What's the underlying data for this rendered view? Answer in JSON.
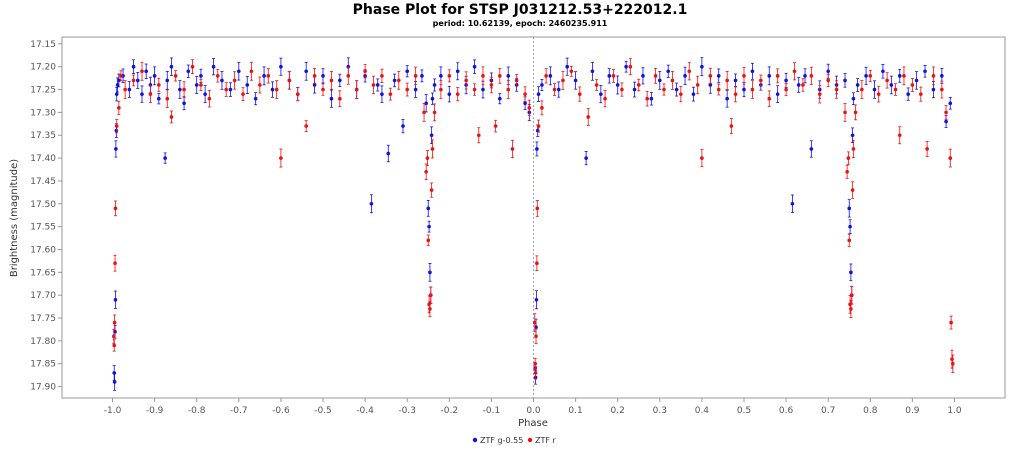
{
  "chart_data": {
    "type": "scatter",
    "title": "Phase Plot for STSP J031212.53+222012.1",
    "subtitle": "period: 10.62139, epoch: 2460235.911",
    "xlabel": "Phase",
    "ylabel": "Brightness (magnitude)",
    "xlim": [
      -1.12,
      1.12
    ],
    "ylim": [
      17.135,
      17.925
    ],
    "y_inverted": true,
    "grid": false,
    "legend_position": "bottom-center",
    "x_ticks": [
      "-1.0",
      "-0.9",
      "-0.8",
      "-0.7",
      "-0.6",
      "-0.5",
      "-0.4",
      "-0.3",
      "-0.2",
      "-0.1",
      "0.0",
      "0.1",
      "0.2",
      "0.3",
      "0.4",
      "0.5",
      "0.6",
      "0.7",
      "0.8",
      "0.9",
      "1.0"
    ],
    "y_ticks": [
      "17.15",
      "17.20",
      "17.25",
      "17.30",
      "17.35",
      "17.40",
      "17.45",
      "17.50",
      "17.55",
      "17.60",
      "17.65",
      "17.70",
      "17.75",
      "17.80",
      "17.85",
      "17.90"
    ],
    "reference_line_x": 0.0,
    "series": [
      {
        "name": "ZTF g-0.55",
        "color": "#1010e0",
        "points": [
          [
            -0.996,
            17.87
          ],
          [
            -0.995,
            17.89
          ],
          [
            -0.994,
            17.78
          ],
          [
            -0.993,
            17.71
          ],
          [
            -0.992,
            17.38
          ],
          [
            -0.991,
            17.34
          ],
          [
            -0.99,
            17.26
          ],
          [
            -0.988,
            17.24
          ],
          [
            -0.985,
            17.23
          ],
          [
            -0.975,
            17.22
          ],
          [
            -0.96,
            17.25
          ],
          [
            -0.95,
            17.2
          ],
          [
            -0.94,
            17.23
          ],
          [
            -0.93,
            17.26
          ],
          [
            -0.92,
            17.21
          ],
          [
            -0.91,
            17.24
          ],
          [
            -0.9,
            17.22
          ],
          [
            -0.89,
            17.27
          ],
          [
            -0.875,
            17.4
          ],
          [
            -0.87,
            17.23
          ],
          [
            -0.86,
            17.2
          ],
          [
            -0.84,
            17.25
          ],
          [
            -0.83,
            17.28
          ],
          [
            -0.82,
            17.21
          ],
          [
            -0.8,
            17.24
          ],
          [
            -0.79,
            17.22
          ],
          [
            -0.78,
            17.26
          ],
          [
            -0.76,
            17.2
          ],
          [
            -0.74,
            17.23
          ],
          [
            -0.72,
            17.25
          ],
          [
            -0.7,
            17.21
          ],
          [
            -0.68,
            17.24
          ],
          [
            -0.66,
            17.27
          ],
          [
            -0.64,
            17.22
          ],
          [
            -0.62,
            17.25
          ],
          [
            -0.6,
            17.2
          ],
          [
            -0.58,
            17.23
          ],
          [
            -0.56,
            17.26
          ],
          [
            -0.54,
            17.21
          ],
          [
            -0.52,
            17.24
          ],
          [
            -0.5,
            17.22
          ],
          [
            -0.48,
            17.27
          ],
          [
            -0.46,
            17.23
          ],
          [
            -0.44,
            17.2
          ],
          [
            -0.42,
            17.25
          ],
          [
            -0.4,
            17.22
          ],
          [
            -0.385,
            17.5
          ],
          [
            -0.37,
            17.24
          ],
          [
            -0.36,
            17.26
          ],
          [
            -0.345,
            17.39
          ],
          [
            -0.33,
            17.23
          ],
          [
            -0.31,
            17.33
          ],
          [
            -0.3,
            17.21
          ],
          [
            -0.28,
            17.25
          ],
          [
            -0.265,
            17.22
          ],
          [
            -0.255,
            17.28
          ],
          [
            -0.25,
            17.51
          ],
          [
            -0.248,
            17.55
          ],
          [
            -0.246,
            17.65
          ],
          [
            -0.244,
            17.7
          ],
          [
            -0.242,
            17.35
          ],
          [
            -0.24,
            17.27
          ],
          [
            -0.235,
            17.24
          ],
          [
            -0.22,
            17.22
          ],
          [
            -0.2,
            17.26
          ],
          [
            -0.18,
            17.21
          ],
          [
            -0.16,
            17.24
          ],
          [
            -0.14,
            17.2
          ],
          [
            -0.12,
            17.25
          ],
          [
            -0.1,
            17.23
          ],
          [
            -0.08,
            17.27
          ],
          [
            -0.06,
            17.22
          ],
          [
            -0.04,
            17.24
          ],
          [
            -0.02,
            17.28
          ],
          [
            -0.01,
            17.3
          ],
          [
            0.004,
            17.86
          ],
          [
            0.005,
            17.88
          ],
          [
            0.006,
            17.77
          ],
          [
            0.007,
            17.71
          ],
          [
            0.008,
            17.38
          ],
          [
            0.01,
            17.34
          ],
          [
            0.012,
            17.26
          ],
          [
            0.02,
            17.24
          ],
          [
            0.04,
            17.22
          ],
          [
            0.06,
            17.25
          ],
          [
            0.08,
            17.2
          ],
          [
            0.1,
            17.23
          ],
          [
            0.125,
            17.4
          ],
          [
            0.14,
            17.21
          ],
          [
            0.16,
            17.26
          ],
          [
            0.18,
            17.22
          ],
          [
            0.2,
            17.24
          ],
          [
            0.22,
            17.2
          ],
          [
            0.24,
            17.25
          ],
          [
            0.26,
            17.22
          ],
          [
            0.28,
            17.27
          ],
          [
            0.3,
            17.23
          ],
          [
            0.32,
            17.21
          ],
          [
            0.34,
            17.25
          ],
          [
            0.36,
            17.22
          ],
          [
            0.38,
            17.26
          ],
          [
            0.4,
            17.2
          ],
          [
            0.42,
            17.24
          ],
          [
            0.44,
            17.22
          ],
          [
            0.46,
            17.27
          ],
          [
            0.48,
            17.23
          ],
          [
            0.5,
            17.25
          ],
          [
            0.52,
            17.21
          ],
          [
            0.54,
            17.24
          ],
          [
            0.56,
            17.22
          ],
          [
            0.58,
            17.26
          ],
          [
            0.6,
            17.23
          ],
          [
            0.615,
            17.5
          ],
          [
            0.63,
            17.24
          ],
          [
            0.645,
            17.22
          ],
          [
            0.66,
            17.38
          ],
          [
            0.68,
            17.25
          ],
          [
            0.7,
            17.21
          ],
          [
            0.72,
            17.24
          ],
          [
            0.74,
            17.23
          ],
          [
            0.75,
            17.51
          ],
          [
            0.752,
            17.55
          ],
          [
            0.754,
            17.65
          ],
          [
            0.756,
            17.7
          ],
          [
            0.758,
            17.35
          ],
          [
            0.76,
            17.27
          ],
          [
            0.77,
            17.24
          ],
          [
            0.79,
            17.22
          ],
          [
            0.81,
            17.25
          ],
          [
            0.83,
            17.21
          ],
          [
            0.85,
            17.24
          ],
          [
            0.87,
            17.22
          ],
          [
            0.89,
            17.26
          ],
          [
            0.91,
            17.23
          ],
          [
            0.93,
            17.21
          ],
          [
            0.95,
            17.25
          ],
          [
            0.97,
            17.22
          ],
          [
            0.98,
            17.32
          ],
          [
            0.99,
            17.28
          ]
        ]
      },
      {
        "name": "ZTF r",
        "color": "#ee1010",
        "points": [
          [
            -0.997,
            17.79
          ],
          [
            -0.996,
            17.81
          ],
          [
            -0.995,
            17.76
          ],
          [
            -0.994,
            17.63
          ],
          [
            -0.993,
            17.51
          ],
          [
            -0.99,
            17.33
          ],
          [
            -0.985,
            17.29
          ],
          [
            -0.98,
            17.22
          ],
          [
            -0.97,
            17.25
          ],
          [
            -0.95,
            17.23
          ],
          [
            -0.93,
            17.21
          ],
          [
            -0.91,
            17.26
          ],
          [
            -0.89,
            17.24
          ],
          [
            -0.87,
            17.27
          ],
          [
            -0.86,
            17.31
          ],
          [
            -0.85,
            17.22
          ],
          [
            -0.83,
            17.25
          ],
          [
            -0.81,
            17.2
          ],
          [
            -0.79,
            17.24
          ],
          [
            -0.77,
            17.27
          ],
          [
            -0.75,
            17.22
          ],
          [
            -0.73,
            17.25
          ],
          [
            -0.71,
            17.23
          ],
          [
            -0.69,
            17.26
          ],
          [
            -0.67,
            17.21
          ],
          [
            -0.65,
            17.24
          ],
          [
            -0.63,
            17.22
          ],
          [
            -0.61,
            17.25
          ],
          [
            -0.6,
            17.4
          ],
          [
            -0.58,
            17.23
          ],
          [
            -0.56,
            17.26
          ],
          [
            -0.54,
            17.33
          ],
          [
            -0.52,
            17.22
          ],
          [
            -0.5,
            17.25
          ],
          [
            -0.48,
            17.23
          ],
          [
            -0.46,
            17.27
          ],
          [
            -0.44,
            17.22
          ],
          [
            -0.42,
            17.25
          ],
          [
            -0.4,
            17.21
          ],
          [
            -0.38,
            17.24
          ],
          [
            -0.36,
            17.22
          ],
          [
            -0.34,
            17.26
          ],
          [
            -0.32,
            17.23
          ],
          [
            -0.3,
            17.25
          ],
          [
            -0.28,
            17.22
          ],
          [
            -0.26,
            17.3
          ],
          [
            -0.255,
            17.43
          ],
          [
            -0.252,
            17.4
          ],
          [
            -0.25,
            17.58
          ],
          [
            -0.248,
            17.72
          ],
          [
            -0.246,
            17.73
          ],
          [
            -0.244,
            17.7
          ],
          [
            -0.242,
            17.47
          ],
          [
            -0.24,
            17.38
          ],
          [
            -0.235,
            17.3
          ],
          [
            -0.22,
            17.25
          ],
          [
            -0.2,
            17.22
          ],
          [
            -0.18,
            17.26
          ],
          [
            -0.16,
            17.23
          ],
          [
            -0.14,
            17.25
          ],
          [
            -0.13,
            17.35
          ],
          [
            -0.12,
            17.22
          ],
          [
            -0.1,
            17.24
          ],
          [
            -0.09,
            17.33
          ],
          [
            -0.08,
            17.22
          ],
          [
            -0.06,
            17.25
          ],
          [
            -0.05,
            17.38
          ],
          [
            -0.04,
            17.23
          ],
          [
            -0.02,
            17.26
          ],
          [
            -0.01,
            17.29
          ],
          [
            0.003,
            17.76
          ],
          [
            0.004,
            17.85
          ],
          [
            0.005,
            17.87
          ],
          [
            0.006,
            17.79
          ],
          [
            0.008,
            17.63
          ],
          [
            0.009,
            17.51
          ],
          [
            0.012,
            17.33
          ],
          [
            0.02,
            17.29
          ],
          [
            0.03,
            17.22
          ],
          [
            0.05,
            17.25
          ],
          [
            0.07,
            17.23
          ],
          [
            0.09,
            17.21
          ],
          [
            0.11,
            17.26
          ],
          [
            0.13,
            17.31
          ],
          [
            0.15,
            17.24
          ],
          [
            0.17,
            17.27
          ],
          [
            0.19,
            17.22
          ],
          [
            0.21,
            17.25
          ],
          [
            0.23,
            17.2
          ],
          [
            0.25,
            17.24
          ],
          [
            0.27,
            17.27
          ],
          [
            0.29,
            17.22
          ],
          [
            0.31,
            17.25
          ],
          [
            0.33,
            17.23
          ],
          [
            0.35,
            17.26
          ],
          [
            0.37,
            17.21
          ],
          [
            0.39,
            17.24
          ],
          [
            0.4,
            17.4
          ],
          [
            0.42,
            17.22
          ],
          [
            0.44,
            17.25
          ],
          [
            0.46,
            17.23
          ],
          [
            0.47,
            17.33
          ],
          [
            0.48,
            17.26
          ],
          [
            0.5,
            17.22
          ],
          [
            0.52,
            17.25
          ],
          [
            0.54,
            17.23
          ],
          [
            0.56,
            17.27
          ],
          [
            0.58,
            17.22
          ],
          [
            0.6,
            17.25
          ],
          [
            0.62,
            17.21
          ],
          [
            0.64,
            17.24
          ],
          [
            0.66,
            17.22
          ],
          [
            0.68,
            17.26
          ],
          [
            0.7,
            17.23
          ],
          [
            0.72,
            17.25
          ],
          [
            0.74,
            17.3
          ],
          [
            0.745,
            17.43
          ],
          [
            0.748,
            17.4
          ],
          [
            0.75,
            17.58
          ],
          [
            0.752,
            17.72
          ],
          [
            0.754,
            17.73
          ],
          [
            0.756,
            17.7
          ],
          [
            0.758,
            17.47
          ],
          [
            0.76,
            17.38
          ],
          [
            0.765,
            17.3
          ],
          [
            0.78,
            17.25
          ],
          [
            0.8,
            17.22
          ],
          [
            0.82,
            17.26
          ],
          [
            0.84,
            17.23
          ],
          [
            0.86,
            17.25
          ],
          [
            0.87,
            17.35
          ],
          [
            0.88,
            17.22
          ],
          [
            0.9,
            17.24
          ],
          [
            0.92,
            17.26
          ],
          [
            0.935,
            17.38
          ],
          [
            0.95,
            17.22
          ],
          [
            0.97,
            17.25
          ],
          [
            0.98,
            17.3
          ],
          [
            0.99,
            17.4
          ],
          [
            0.992,
            17.76
          ],
          [
            0.994,
            17.84
          ],
          [
            0.996,
            17.85
          ]
        ]
      }
    ]
  }
}
